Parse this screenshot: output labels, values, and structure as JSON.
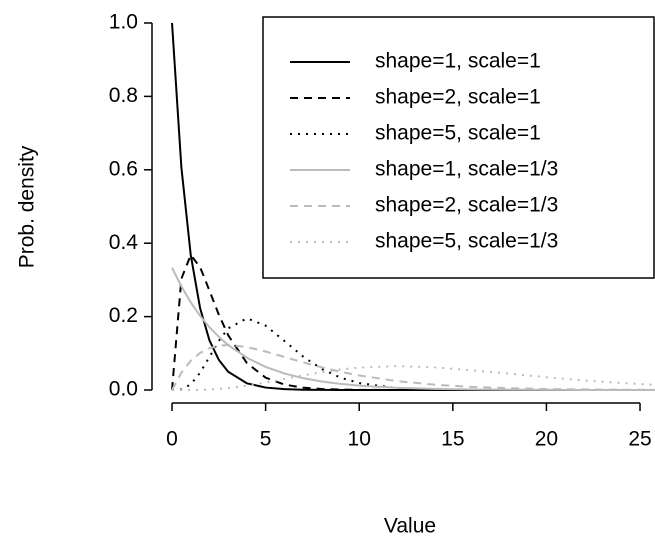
{
  "chart_data": {
    "type": "line",
    "x_label": "Value",
    "y_label": "Prob. density",
    "x": [
      0,
      0.5,
      1,
      1.5,
      2,
      2.5,
      3,
      4,
      5,
      6,
      7,
      8,
      9,
      10,
      12,
      14,
      16,
      18,
      20,
      22,
      24,
      26
    ],
    "series": [
      {
        "name": "shape=1, scale=1",
        "color": "#000000",
        "dash": "solid",
        "values": [
          1,
          0.6065,
          0.3679,
          0.2231,
          0.1353,
          0.0821,
          0.0498,
          0.0183,
          0.0067,
          0.0025,
          0.0009,
          0.0003,
          0.0001,
          0,
          0,
          0,
          0,
          0,
          0,
          0,
          0,
          0
        ]
      },
      {
        "name": "shape=2, scale=1",
        "color": "#000000",
        "dash": "dashed",
        "values": [
          0,
          0.3033,
          0.3679,
          0.3347,
          0.2707,
          0.2052,
          0.1494,
          0.0733,
          0.0337,
          0.0149,
          0.0064,
          0.0027,
          0.0011,
          0.0005,
          0.0001,
          0,
          0,
          0,
          0,
          0,
          0,
          0
        ]
      },
      {
        "name": "shape=5, scale=1",
        "color": "#000000",
        "dash": "dotted",
        "values": [
          0,
          0.0016,
          0.0153,
          0.0471,
          0.0902,
          0.1336,
          0.168,
          0.1954,
          0.1755,
          0.1339,
          0.0912,
          0.0573,
          0.0337,
          0.0189,
          0.0053,
          0.0013,
          0.0003,
          0.0001,
          0,
          0,
          0,
          0
        ]
      },
      {
        "name": "shape=1, scale=1/3",
        "color": "#bbbbbb",
        "dash": "solid",
        "values": [
          0.3333,
          0.2822,
          0.2388,
          0.2022,
          0.1711,
          0.1449,
          0.1226,
          0.0879,
          0.063,
          0.0451,
          0.0323,
          0.0232,
          0.0166,
          0.0119,
          0.0061,
          0.0031,
          0.0016,
          0.0008,
          0.0004,
          0.0002,
          0.0001,
          0.0001
        ]
      },
      {
        "name": "shape=2, scale=1/3",
        "color": "#bbbbbb",
        "dash": "dashed",
        "values": [
          0,
          0.047,
          0.0796,
          0.1011,
          0.1141,
          0.1207,
          0.1226,
          0.1172,
          0.1049,
          0.0902,
          0.0754,
          0.0618,
          0.0498,
          0.0397,
          0.0244,
          0.0146,
          0.0085,
          0.005,
          0.0028,
          0.0016,
          0.0009,
          0.0005
        ]
      },
      {
        "name": "shape=5, scale=1/3",
        "color": "#bbbbbb",
        "dash": "dotted",
        "values": [
          0,
          0,
          0.0001,
          0.0005,
          0.0014,
          0.0029,
          0.0051,
          0.0116,
          0.0202,
          0.0301,
          0.0399,
          0.0488,
          0.056,
          0.0612,
          0.0651,
          0.0619,
          0.0539,
          0.0446,
          0.0348,
          0.0261,
          0.0191,
          0.0135
        ]
      }
    ],
    "xlim": [
      -1,
      25.8
    ],
    "ylim": [
      -0.04,
      1.04
    ],
    "xticks": [
      0,
      5,
      10,
      15,
      20,
      25
    ],
    "yticks": [
      {
        "value": 0,
        "label": "0.0"
      },
      {
        "value": 0.2,
        "label": "0.2"
      },
      {
        "value": 0.4,
        "label": "0.4"
      },
      {
        "value": 0.6,
        "label": "0.6"
      },
      {
        "value": 0.8,
        "label": "0.8"
      },
      {
        "value": 1,
        "label": "1.0"
      }
    ],
    "legend": "topright"
  }
}
